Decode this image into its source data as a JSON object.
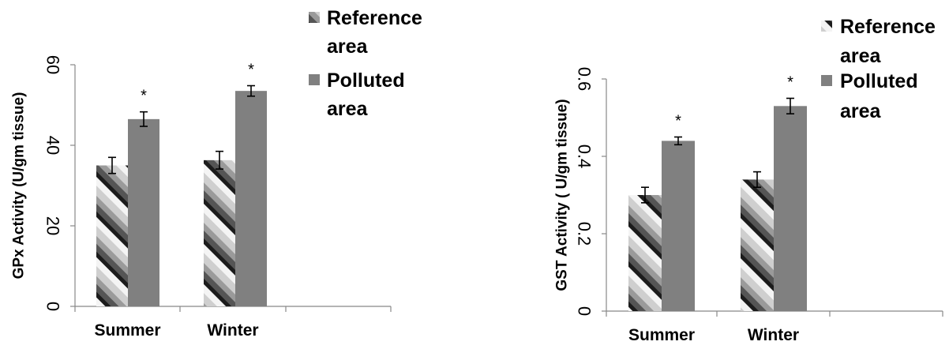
{
  "chart_data": [
    {
      "type": "bar",
      "ylabel": "GPx Activity (U/gm tissue)",
      "categories": [
        "Summer",
        "Winter"
      ],
      "ylim": [
        0,
        60
      ],
      "yticks": [
        "0",
        "20",
        "40",
        "60"
      ],
      "series": [
        {
          "name": "Reference area",
          "values": [
            35,
            36.3
          ],
          "errors": [
            2,
            2.2
          ],
          "color": "hatched-gradient"
        },
        {
          "name": "Polluted area",
          "values": [
            46.5,
            53.5
          ],
          "errors": [
            1.8,
            1.3
          ],
          "color": "#808080"
        }
      ],
      "annotations": [
        "*",
        "*"
      ],
      "legend": [
        {
          "line1": "Reference",
          "line2": "area"
        },
        {
          "line1": "Polluted",
          "line2": "area"
        }
      ],
      "legend_position": "top-right"
    },
    {
      "type": "bar",
      "ylabel": "GST Activity ( U/gm tissue)",
      "categories": [
        "Summer",
        "Winter"
      ],
      "ylim": [
        0,
        0.6
      ],
      "yticks": [
        "0",
        "0.2",
        "0.4",
        "0.6"
      ],
      "series": [
        {
          "name": "Reference area",
          "values": [
            0.3,
            0.34
          ],
          "errors": [
            0.02,
            0.02
          ],
          "color": "hatched-gradient"
        },
        {
          "name": "Polluted area",
          "values": [
            0.44,
            0.53
          ],
          "errors": [
            0.01,
            0.02
          ],
          "color": "#808080"
        }
      ],
      "annotations": [
        "*",
        "*"
      ],
      "legend": [
        {
          "line1": "Reference",
          "line2": "area"
        },
        {
          "line1": "Polluted",
          "line2": "area"
        }
      ],
      "legend_position": "top-right"
    }
  ]
}
